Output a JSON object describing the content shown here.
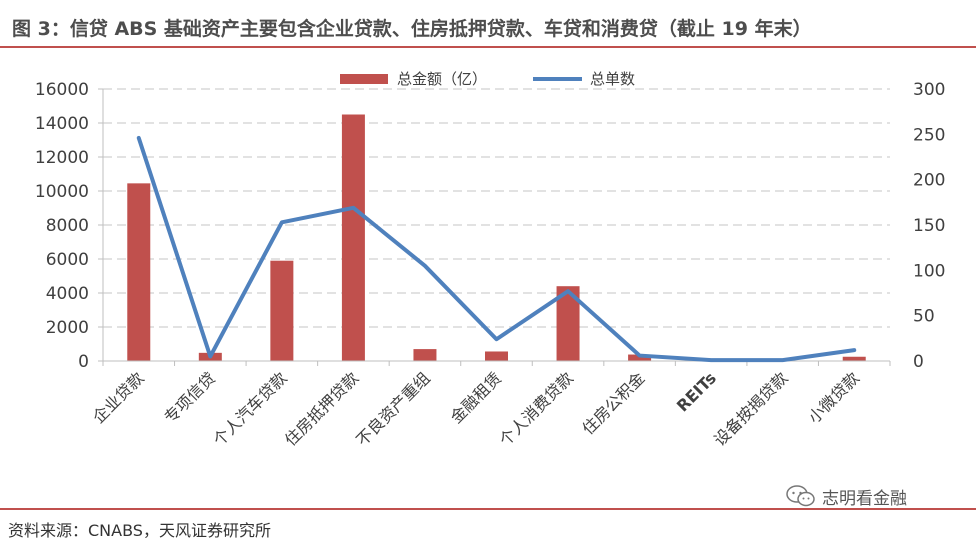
{
  "title": "图 3：信贷 ABS 基础资产主要包含企业贷款、住房抵押贷款、车贷和消费贷（截止 19 年末）",
  "source": "资料来源：CNABS，天风证券研究所",
  "watermark": "志明看金融",
  "watermark_icon": "wechat-icon",
  "colors": {
    "bar": "#c0504d",
    "line": "#4f81bd",
    "rule": "#c0504d",
    "grid": "#d9d9d9"
  },
  "chart_data": {
    "type": "bar",
    "categories": [
      "企业贷款",
      "专项信贷",
      "个人汽车贷款",
      "住房抵押贷款",
      "不良资产重组",
      "金融租赁",
      "个人消费贷款",
      "住房公积金",
      "REITs",
      "设备按揭贷款",
      "小微贷款"
    ],
    "series": [
      {
        "name": "总金额（亿）",
        "type": "bar",
        "axis": "left",
        "values": [
          10450,
          480,
          5900,
          14500,
          700,
          560,
          4400,
          380,
          0,
          0,
          250
        ]
      },
      {
        "name": "总单数",
        "type": "line",
        "axis": "right",
        "values": [
          246,
          5,
          153,
          169,
          105,
          24,
          77,
          6,
          1,
          1,
          12
        ]
      }
    ],
    "y_left": {
      "min": 0,
      "max": 16000,
      "ticks": [
        "0",
        "2000",
        "4000",
        "6000",
        "8000",
        "10000",
        "12000",
        "14000",
        "16000"
      ]
    },
    "y_right": {
      "min": 0,
      "max": 300,
      "ticks": [
        "0",
        "50",
        "100",
        "150",
        "200",
        "250",
        "300"
      ]
    },
    "grid": true,
    "legend": "top-center"
  }
}
